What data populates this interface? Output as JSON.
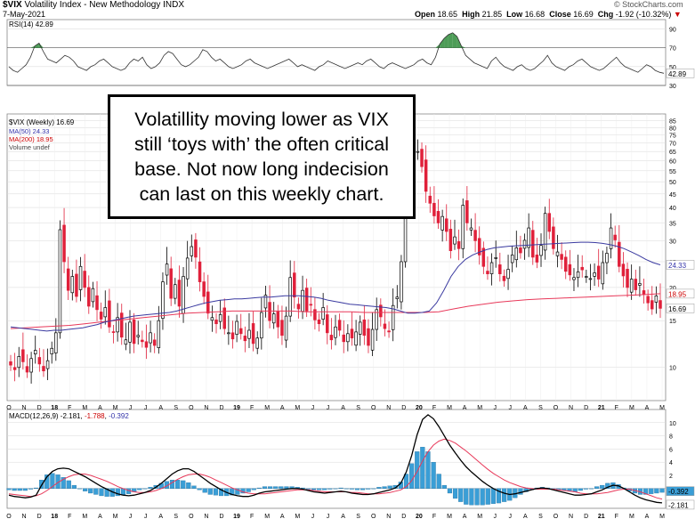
{
  "header": {
    "symbol": "$VIX",
    "name": "Volatility Index - New Methodology",
    "exchange": "INDX",
    "date": "7-May-2021",
    "watermark": "© StockCharts.com",
    "open_label": "Open",
    "open": "18.65",
    "high_label": "High",
    "high": "21.85",
    "low_label": "Low",
    "low": "16.68",
    "close_label": "Close",
    "close": "16.69",
    "chg_label": "Chg",
    "chg": "-1.92 (-10.32%)",
    "chg_arrow": "▼"
  },
  "annotation": {
    "lines": [
      "Volatillity moving lower as VIX",
      "still ‘toys with’ the often critical",
      "base. Not now long indecision",
      "can last on this weekly chart."
    ]
  },
  "colors": {
    "up": "#000000",
    "down": "#e0203a",
    "ma50": "#3a3aa0",
    "ma200": "#e8395a",
    "rsi_line": "#333333",
    "rsi_fill": "#2e8b3a",
    "macd_line": "#000000",
    "signal_line": "#e8395a",
    "hist": "#3a9ed6",
    "grid": "#d8d8d8",
    "red_text": "#cc0000",
    "blue_text": "#3333aa"
  },
  "chart_data": [
    {
      "type": "line",
      "panel": "rsi",
      "label": "RSI(14)",
      "value_label": "42.89",
      "ylim": [
        30,
        100
      ],
      "ticks": [
        "90",
        "70",
        "50",
        "30"
      ],
      "current_tag": "42.89",
      "values": [
        50,
        46,
        44,
        48,
        52,
        60,
        72,
        75,
        66,
        58,
        56,
        54,
        58,
        62,
        60,
        56,
        50,
        48,
        46,
        50,
        52,
        56,
        58,
        54,
        50,
        48,
        46,
        48,
        54,
        58,
        56,
        60,
        52,
        48,
        50,
        54,
        62,
        66,
        64,
        58,
        52,
        50,
        52,
        56,
        60,
        68,
        66,
        60,
        56,
        58,
        54,
        50,
        48,
        50,
        52,
        56,
        58,
        54,
        52,
        50,
        48,
        50,
        52,
        54,
        56,
        58,
        54,
        50,
        52,
        50,
        48,
        46,
        50,
        52,
        56,
        54,
        52,
        50,
        48,
        50,
        52,
        54,
        52,
        56,
        58,
        54,
        50,
        48,
        52,
        54,
        52,
        50,
        48,
        50,
        52,
        56,
        58,
        54,
        52,
        60,
        74,
        80,
        84,
        86,
        82,
        72,
        62,
        58,
        54,
        52,
        50,
        48,
        56,
        60,
        54,
        50,
        48,
        46,
        50,
        52,
        48,
        46,
        48,
        52,
        56,
        62,
        54,
        50,
        48,
        46,
        50,
        52,
        56,
        58,
        54,
        50,
        48,
        46,
        48,
        52,
        56,
        60,
        54,
        50,
        48,
        46,
        44,
        48,
        52,
        50,
        46,
        44,
        43
      ]
    },
    {
      "type": "candlestick",
      "panel": "price",
      "title": "$VIX (Weekly) 16.69",
      "legend": [
        "$VIX (Weekly) 16.69",
        "MA(50) 24.33",
        "MA(200) 18.95",
        "Volume undef"
      ],
      "scale": "log",
      "ylim": [
        7.5,
        90
      ],
      "y_ticks": [
        "85",
        "80",
        "75",
        "70",
        "65",
        "60",
        "55",
        "50",
        "45",
        "40",
        "35",
        "30",
        "25",
        "20",
        "15",
        "10"
      ],
      "price_tags": [
        "24.33",
        "18.95",
        "16.69"
      ],
      "x_labels": [
        "O",
        "N",
        "D",
        "18",
        "F",
        "M",
        "A",
        "M",
        "J",
        "J",
        "A",
        "S",
        "O",
        "N",
        "D",
        "19",
        "F",
        "M",
        "A",
        "M",
        "J",
        "J",
        "A",
        "S",
        "O",
        "N",
        "D",
        "20",
        "F",
        "M",
        "A",
        "M",
        "J",
        "J",
        "A",
        "S",
        "O",
        "N",
        "D",
        "21",
        "F",
        "M",
        "A",
        "M"
      ],
      "closes": [
        10.2,
        9.8,
        11.0,
        10.5,
        9.6,
        10.8,
        11.6,
        10.3,
        9.7,
        10.6,
        11.8,
        13.5,
        33.0,
        25.0,
        19.5,
        22.0,
        18.5,
        24.0,
        20.0,
        17.0,
        19.8,
        16.5,
        15.2,
        16.8,
        14.2,
        13.6,
        15.4,
        13.0,
        12.7,
        14.8,
        12.3,
        13.2,
        12.5,
        11.9,
        13.5,
        12.1,
        15.0,
        21.0,
        24.5,
        18.2,
        20.5,
        17.0,
        22.0,
        25.8,
        28.5,
        26.0,
        21.0,
        18.5,
        16.0,
        15.4,
        14.6,
        15.8,
        14.0,
        13.5,
        12.8,
        14.9,
        13.4,
        12.6,
        13.8,
        12.3,
        12.9,
        16.1,
        18.7,
        15.0,
        15.9,
        14.2,
        13.2,
        15.6,
        21.8,
        18.4,
        16.6,
        19.5,
        16.3,
        17.2,
        15.1,
        14.6,
        16.8,
        13.5,
        12.7,
        14.2,
        13.8,
        12.5,
        13.4,
        12.9,
        13.6,
        14.8,
        13.2,
        12.1,
        13.9,
        16.5,
        15.5,
        14.0,
        13.6,
        17.1,
        18.4,
        25.0,
        40.0,
        50.0,
        66.0,
        65.0,
        57.0,
        46.0,
        41.5,
        37.2,
        35.0,
        37.0,
        32.5,
        27.5,
        31.0,
        28.0,
        40.8,
        35.0,
        33.5,
        30.0,
        26.5,
        24.0,
        22.5,
        24.8,
        25.9,
        22.5,
        21.2,
        23.4,
        26.5,
        28.2,
        27.0,
        30.1,
        33.5,
        26.0,
        24.9,
        28.8,
        38.0,
        32.5,
        28.0,
        27.2,
        25.5,
        23.0,
        22.3,
        21.8,
        22.9,
        23.3,
        22.0,
        21.6,
        22.7,
        21.5,
        24.8,
        26.9,
        33.5,
        30.2,
        24.0,
        22.1,
        20.0,
        21.5,
        19.6,
        20.7,
        18.9,
        17.5,
        16.6,
        18.6,
        16.69
      ]
    },
    {
      "type": "line",
      "panel": "price",
      "name": "MA(50)",
      "values": [
        14.2,
        14.1,
        14.0,
        13.9,
        13.8,
        13.7,
        13.8,
        13.8,
        13.9,
        14.0,
        14.1,
        14.3,
        14.5,
        14.8,
        15.0,
        15.2,
        15.4,
        15.6,
        15.7,
        15.8,
        15.9,
        16.0,
        16.1,
        16.3,
        16.6,
        16.9,
        17.2,
        17.5,
        17.7,
        17.9,
        18.0,
        18.1,
        18.1,
        18.2,
        18.3,
        18.4,
        18.4,
        18.5,
        18.6,
        18.6,
        18.6,
        18.5,
        18.4,
        18.2,
        17.9,
        17.7,
        17.5,
        17.3,
        17.2,
        17.1,
        17.0,
        16.9,
        16.8,
        16.6,
        16.3,
        16.0,
        16.0,
        16.1,
        16.3,
        17.5,
        19.5,
        22.0,
        24.0,
        25.5,
        26.5,
        27.2,
        27.8,
        28.2,
        28.4,
        28.6,
        28.7,
        28.8,
        28.9,
        29.0,
        29.1,
        29.2,
        29.3,
        29.4,
        29.5,
        29.6,
        29.6,
        29.5,
        29.3,
        29.0,
        28.6,
        28.0,
        27.2,
        26.4,
        25.5,
        24.8,
        24.33
      ]
    },
    {
      "type": "line",
      "panel": "price",
      "name": "MA(200)",
      "values": [
        14.0,
        14.1,
        14.2,
        14.3,
        14.4,
        14.6,
        14.8,
        15.0,
        15.2,
        15.4,
        15.6,
        15.8,
        16.0,
        16.1,
        16.2,
        16.3,
        16.3,
        16.3,
        16.3,
        16.3,
        16.2,
        16.2,
        16.2,
        16.2,
        16.1,
        16.1,
        16.1,
        16.1,
        16.1,
        16.2,
        16.6,
        17.0,
        17.3,
        17.6,
        17.8,
        18.0,
        18.1,
        18.2,
        18.3,
        18.4,
        18.5,
        18.6,
        18.7,
        18.8,
        18.95
      ]
    },
    {
      "type": "line",
      "panel": "macd",
      "label": "MACD(12,26,9)",
      "macd_label_value": "-2.181",
      "signal_label_value": "-1.788",
      "hist_label_value": "-0.392",
      "ylim": [
        -3,
        12
      ],
      "y_ticks": [
        "10",
        "8",
        "6",
        "4",
        "2",
        "0"
      ],
      "tags": [
        "-0.392",
        "-2.181"
      ],
      "macd": [
        -1.0,
        -1.2,
        -1.3,
        -1.4,
        -1.3,
        -1.0,
        0.5,
        1.8,
        2.6,
        3.0,
        3.1,
        3.0,
        2.6,
        2.2,
        1.8,
        1.3,
        0.8,
        0.3,
        -0.1,
        -0.5,
        -0.8,
        -1.0,
        -1.1,
        -1.0,
        -0.8,
        -0.6,
        -0.3,
        0.2,
        0.8,
        1.5,
        2.2,
        2.7,
        3.0,
        3.0,
        2.6,
        2.0,
        1.4,
        0.8,
        0.3,
        -0.2,
        -0.6,
        -0.9,
        -1.1,
        -1.2,
        -1.2,
        -1.0,
        -0.7,
        -0.5,
        -0.4,
        -0.3,
        -0.2,
        -0.1,
        0.0,
        0.0,
        -0.1,
        -0.3,
        -0.5,
        -0.6,
        -0.7,
        -0.6,
        -0.5,
        -0.4,
        -0.5,
        -0.7,
        -0.8,
        -0.9,
        -0.9,
        -0.8,
        -0.6,
        -0.4,
        -0.2,
        0.1,
        0.8,
        2.5,
        5.0,
        8.2,
        10.5,
        11.2,
        10.6,
        9.4,
        8.0,
        6.6,
        5.4,
        4.3,
        3.3,
        2.5,
        1.8,
        1.1,
        0.5,
        0.0,
        -0.4,
        -0.7,
        -0.9,
        -0.8,
        -0.6,
        -0.4,
        -0.2,
        0.0,
        0.1,
        0.0,
        -0.2,
        -0.4,
        -0.6,
        -0.8,
        -1.0,
        -1.0,
        -0.9,
        -0.8,
        -0.5,
        -0.2,
        0.2,
        0.5,
        0.4,
        0.0,
        -0.5,
        -1.0,
        -1.4,
        -1.7,
        -1.9,
        -2.1,
        -2.181
      ],
      "signal": [
        -0.8,
        -0.9,
        -1.0,
        -1.1,
        -1.2,
        -1.1,
        -0.8,
        -0.3,
        0.3,
        0.9,
        1.4,
        1.8,
        2.1,
        2.2,
        2.2,
        2.0,
        1.7,
        1.4,
        1.1,
        0.7,
        0.3,
        0.0,
        -0.3,
        -0.5,
        -0.6,
        -0.6,
        -0.5,
        -0.3,
        0.0,
        0.4,
        0.9,
        1.4,
        1.8,
        2.1,
        2.2,
        2.2,
        2.0,
        1.7,
        1.3,
        0.9,
        0.5,
        0.1,
        -0.2,
        -0.5,
        -0.7,
        -0.8,
        -0.8,
        -0.8,
        -0.7,
        -0.6,
        -0.5,
        -0.4,
        -0.3,
        -0.2,
        -0.2,
        -0.2,
        -0.3,
        -0.4,
        -0.5,
        -0.5,
        -0.5,
        -0.5,
        -0.5,
        -0.6,
        -0.6,
        -0.7,
        -0.8,
        -0.8,
        -0.8,
        -0.7,
        -0.6,
        -0.4,
        -0.2,
        0.3,
        1.2,
        2.6,
        4.2,
        5.6,
        6.6,
        7.2,
        7.5,
        7.3,
        6.9,
        6.3,
        5.7,
        5.0,
        4.3,
        3.6,
        2.9,
        2.3,
        1.8,
        1.3,
        0.9,
        0.6,
        0.3,
        0.1,
        0.0,
        -0.1,
        -0.1,
        -0.1,
        -0.1,
        -0.2,
        -0.3,
        -0.4,
        -0.5,
        -0.7,
        -0.8,
        -0.8,
        -0.8,
        -0.7,
        -0.6,
        -0.4,
        -0.2,
        -0.1,
        -0.1,
        -0.3,
        -0.5,
        -0.8,
        -1.1,
        -1.4,
        -1.6,
        -1.788
      ]
    }
  ]
}
